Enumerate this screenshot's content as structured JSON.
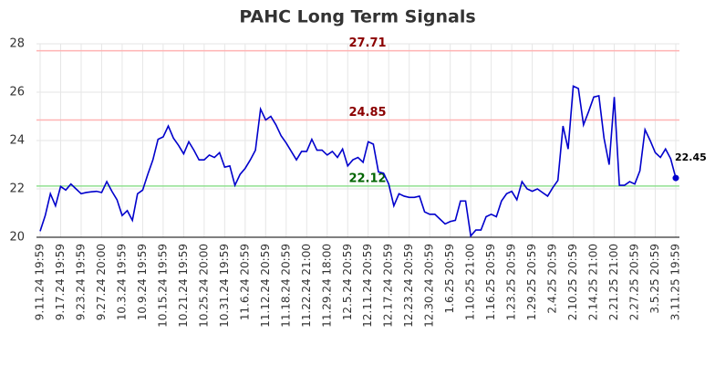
{
  "chart_data": {
    "type": "line",
    "title": "PAHC Long Term Signals",
    "categories": [
      "9.11.24 19:59",
      null,
      null,
      null,
      "9.17.24 19:59",
      null,
      null,
      null,
      "9.23.24 19:59",
      null,
      null,
      null,
      "9.27.24 20:00",
      null,
      null,
      null,
      "10.3.24 19:59",
      null,
      null,
      null,
      "10.9.24 19:59",
      null,
      null,
      null,
      "10.15.24 19:59",
      null,
      null,
      null,
      "10.21.24 19:59",
      null,
      null,
      null,
      "10.25.24 20:00",
      null,
      null,
      null,
      "10.31.24 19:59",
      null,
      null,
      null,
      "11.6.24 20:59",
      null,
      null,
      null,
      "11.12.24 20:59",
      null,
      null,
      null,
      "11.18.24 20:59",
      null,
      null,
      null,
      "11.22.24 21:00",
      null,
      null,
      null,
      "11.29.24 18:00",
      null,
      null,
      null,
      "12.5.24 20:59",
      null,
      null,
      null,
      "12.11.24 20:59",
      null,
      null,
      null,
      "12.17.24 20:59",
      null,
      null,
      null,
      "12.23.24 20:59",
      null,
      null,
      null,
      "12.30.24 20:59",
      null,
      null,
      null,
      "1.6.25 20:59",
      null,
      null,
      null,
      "1.10.25 21:00",
      null,
      null,
      null,
      "1.16.25 20:59",
      null,
      null,
      null,
      "1.23.25 20:59",
      null,
      null,
      null,
      "1.29.25 20:59",
      null,
      null,
      null,
      "2.4.25 20:59",
      null,
      null,
      null,
      "2.10.25 20:59",
      null,
      null,
      null,
      "2.14.25 21:00",
      null,
      null,
      null,
      "2.21.25 21:00",
      null,
      null,
      null,
      "2.27.25 20:59",
      null,
      null,
      null,
      "3.5.25 20:59",
      null,
      null,
      null,
      "3.11.25 19:59"
    ],
    "series": [
      {
        "color": "#0000cc",
        "values": [
          20.25,
          20.9,
          21.8,
          21.3,
          22.1,
          21.95,
          22.2,
          22.0,
          21.8,
          21.85,
          21.88,
          21.9,
          21.85,
          22.3,
          21.9,
          21.55,
          20.9,
          21.1,
          20.7,
          21.8,
          21.95,
          22.6,
          23.2,
          24.05,
          24.15,
          24.6,
          24.1,
          23.8,
          23.45,
          23.95,
          23.6,
          23.2,
          23.2,
          23.4,
          23.3,
          23.5,
          22.9,
          22.95,
          22.15,
          22.6,
          22.85,
          23.2,
          23.6,
          25.3,
          24.85,
          25.0,
          24.65,
          24.2,
          23.9,
          23.55,
          23.2,
          23.55,
          23.55,
          24.05,
          23.6,
          23.6,
          23.4,
          23.55,
          23.3,
          23.65,
          22.95,
          23.2,
          23.3,
          23.1,
          23.95,
          23.85,
          22.7,
          22.65,
          22.2,
          21.3,
          21.8,
          21.7,
          21.65,
          21.65,
          21.7,
          21.05,
          20.95,
          20.95,
          20.75,
          20.55,
          20.65,
          20.7,
          21.5,
          21.5,
          20.05,
          20.3,
          20.3,
          20.85,
          20.95,
          20.85,
          21.5,
          21.8,
          21.9,
          21.55,
          22.3,
          22.0,
          21.9,
          22.0,
          21.85,
          21.7,
          22.05,
          22.35,
          24.6,
          23.65,
          26.25,
          26.15,
          24.65,
          25.2,
          25.8,
          25.85,
          24.1,
          23.0,
          25.8,
          22.15,
          22.15,
          22.3,
          22.2,
          22.75,
          24.45,
          24.0,
          23.5,
          23.3,
          23.65,
          23.25,
          22.45
        ]
      }
    ],
    "hlines": [
      {
        "value": 27.71,
        "color": "#ffb3b3",
        "label_color": "#8b0000"
      },
      {
        "value": 24.85,
        "color": "#ffb3b3",
        "label_color": "#8b0000"
      },
      {
        "value": 22.12,
        "color": "#90e090",
        "label_color": "#006400"
      }
    ],
    "ylim": [
      20,
      28
    ],
    "yticks": [
      20,
      22,
      24,
      26,
      28
    ],
    "grid": true
  }
}
